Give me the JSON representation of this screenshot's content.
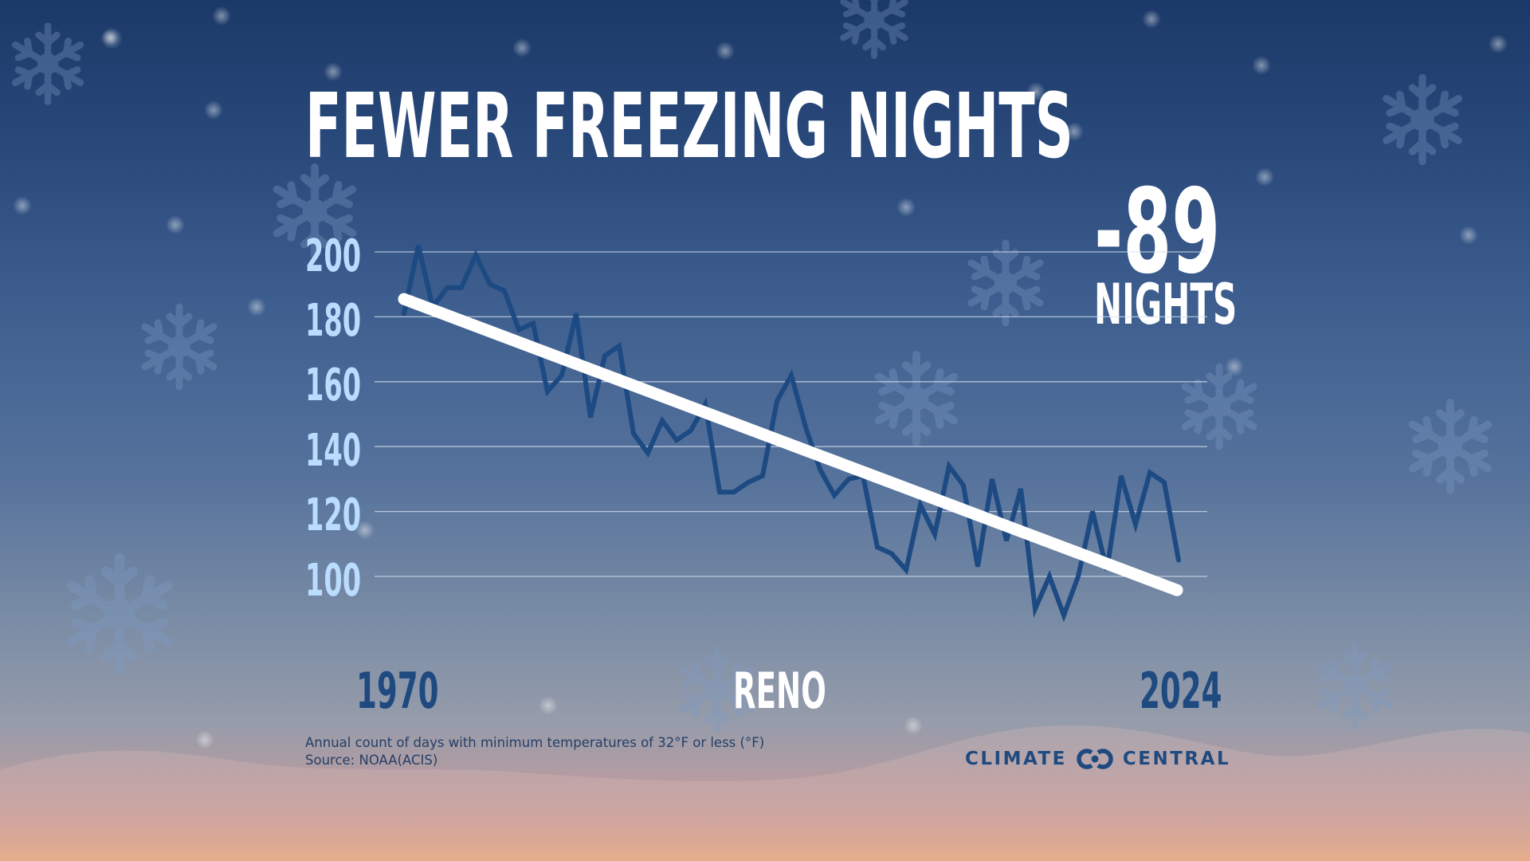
{
  "title": "FEWER FREEZING NIGHTS",
  "annotation": {
    "value": "-89",
    "unit": "NIGHTS"
  },
  "x_axis": {
    "start_label": "1970",
    "center_label": "RENO",
    "end_label": "2024"
  },
  "y_axis": {
    "ticks": [
      "200",
      "180",
      "160",
      "140",
      "120",
      "100"
    ]
  },
  "footnote": {
    "description": "Annual count of days with minimum temperatures of 32°F or less (°F)",
    "source": "Source: NOAA(ACIS)"
  },
  "brand": {
    "left": "CLIMATE",
    "right": "CENTRAL",
    "logo_icon": "interlocking-c-logo-icon"
  },
  "colors": {
    "data_line": "#1d4a82",
    "trend_line": "#ffffff",
    "y_labels": "#b9dcff",
    "gridline": "#d6e2f0",
    "dark_text": "#1e4a80"
  },
  "chart_data": {
    "type": "line",
    "title": "FEWER FREEZING NIGHTS",
    "subtitle": "RENO",
    "xlabel": "",
    "ylabel": "Annual count of days with minimum temperatures of 32°F or less",
    "x": [
      1970,
      1971,
      1972,
      1973,
      1974,
      1975,
      1976,
      1977,
      1978,
      1979,
      1980,
      1981,
      1982,
      1983,
      1984,
      1985,
      1986,
      1987,
      1988,
      1989,
      1990,
      1991,
      1992,
      1993,
      1994,
      1995,
      1996,
      1997,
      1998,
      1999,
      2000,
      2001,
      2002,
      2003,
      2004,
      2005,
      2006,
      2007,
      2008,
      2009,
      2010,
      2011,
      2012,
      2013,
      2014,
      2015,
      2016,
      2017,
      2018,
      2019,
      2020,
      2021,
      2022,
      2023,
      2024
    ],
    "series": [
      {
        "name": "Freezing nights",
        "values": [
          181,
          202,
          183,
          189,
          189,
          199,
          190,
          188,
          176,
          178,
          157,
          162,
          181,
          149,
          168,
          171,
          144,
          138,
          148,
          142,
          145,
          153,
          126,
          126,
          129,
          131,
          154,
          162,
          146,
          133,
          125,
          130,
          131,
          109,
          107,
          102,
          122,
          113,
          134,
          128,
          103,
          130,
          111,
          127,
          90,
          100,
          88,
          100,
          120,
          102,
          131,
          116,
          132,
          129,
          105
        ]
      },
      {
        "name": "Trend",
        "values": [
          184,
          96
        ]
      }
    ],
    "trend": {
      "start_year": 1970,
      "start_value": 184,
      "end_year": 2024,
      "end_value": 96,
      "change": -89
    },
    "yticks": [
      200,
      180,
      160,
      140,
      120,
      100
    ],
    "ylim": [
      85,
      205
    ],
    "grid": true,
    "annotations": [
      "-89 NIGHTS"
    ],
    "legend": "none"
  }
}
